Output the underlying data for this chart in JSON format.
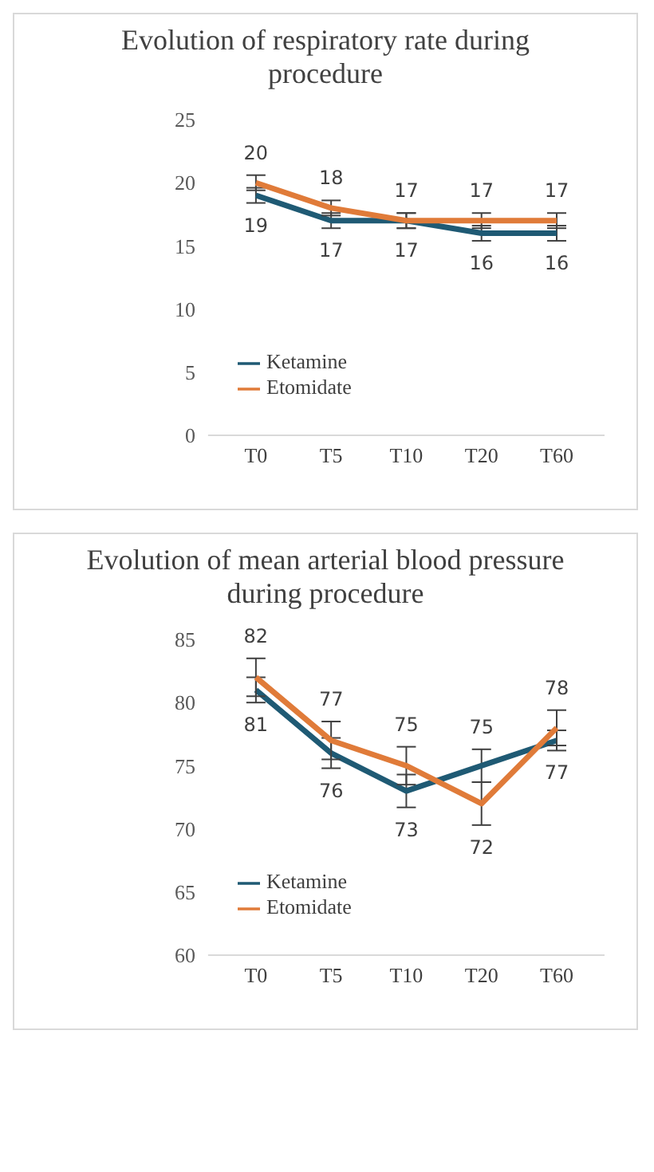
{
  "chart_data": [
    {
      "type": "line",
      "title": "Evolution of respiratory rate during procedure",
      "categories": [
        "T0",
        "T5",
        "T10",
        "T20",
        "T60"
      ],
      "series": [
        {
          "name": "Ketamine",
          "color": "#1f5a74",
          "values": [
            19,
            17,
            17,
            16,
            16
          ],
          "errors": [
            0.6,
            0.6,
            0.6,
            0.6,
            0.6
          ]
        },
        {
          "name": "Etomidate",
          "color": "#e07b39",
          "values": [
            20,
            18,
            17,
            17,
            17
          ],
          "errors": [
            0.6,
            0.6,
            0.6,
            0.6,
            0.6
          ]
        }
      ],
      "ylim": [
        0,
        25
      ],
      "yticks": [
        0,
        5,
        10,
        15,
        20,
        25
      ],
      "grid": false,
      "legend": "bottom left",
      "marker": "none",
      "line_style": "solid",
      "data_labels": true
    },
    {
      "type": "line",
      "title": "Evolution of mean arterial blood pressure during procedure",
      "categories": [
        "T0",
        "T5",
        "T10",
        "T20",
        "T60"
      ],
      "series": [
        {
          "name": "Ketamine",
          "color": "#1f5a74",
          "values": [
            81,
            76,
            73,
            75,
            77
          ],
          "errors": [
            1,
            1.2,
            1.3,
            1.3,
            0.8
          ]
        },
        {
          "name": "Etomidate",
          "color": "#e07b39",
          "values": [
            82,
            77,
            75,
            72,
            78
          ],
          "errors": [
            1.5,
            1.5,
            1.5,
            1.7,
            1.4
          ]
        }
      ],
      "ylim": [
        60,
        85
      ],
      "yticks": [
        60,
        65,
        70,
        75,
        80,
        85
      ],
      "grid": false,
      "legend": "bottom left",
      "marker": "none",
      "line_style": "solid",
      "data_labels": true
    }
  ]
}
